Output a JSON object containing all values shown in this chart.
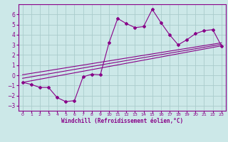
{
  "title": "",
  "xlabel": "Windchill (Refroidissement éolien,°C)",
  "ylabel": "",
  "bg_color": "#cce8e8",
  "grid_color": "#aacccc",
  "line_color": "#880088",
  "xlim": [
    -0.5,
    23.5
  ],
  "ylim": [
    -3.5,
    7.0
  ],
  "yticks": [
    -3,
    -2,
    -1,
    0,
    1,
    2,
    3,
    4,
    5,
    6
  ],
  "xticks": [
    0,
    1,
    2,
    3,
    4,
    5,
    6,
    7,
    8,
    9,
    10,
    11,
    12,
    13,
    14,
    15,
    16,
    17,
    18,
    19,
    20,
    21,
    22,
    23
  ],
  "main_x": [
    0,
    1,
    2,
    3,
    4,
    5,
    6,
    7,
    8,
    9,
    10,
    11,
    12,
    13,
    14,
    15,
    16,
    17,
    18,
    19,
    20,
    21,
    22,
    23
  ],
  "main_y": [
    -0.7,
    -0.9,
    -1.2,
    -1.2,
    -2.2,
    -2.6,
    -2.5,
    -0.15,
    0.1,
    0.05,
    3.2,
    5.6,
    5.1,
    4.7,
    4.8,
    6.5,
    5.2,
    4.0,
    3.0,
    3.5,
    4.1,
    4.4,
    4.5,
    2.9
  ],
  "line1_x": [
    0,
    23
  ],
  "line1_y": [
    -0.7,
    2.9
  ],
  "line2_x": [
    0,
    23
  ],
  "line2_y": [
    -0.3,
    3.05
  ],
  "line3_x": [
    0,
    23
  ],
  "line3_y": [
    0.05,
    3.2
  ]
}
